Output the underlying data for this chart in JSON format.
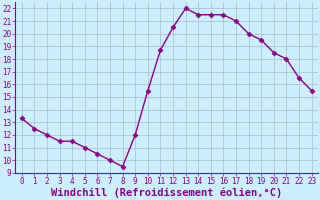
{
  "x": [
    0,
    1,
    2,
    3,
    4,
    5,
    6,
    7,
    8,
    9,
    10,
    11,
    12,
    13,
    14,
    15,
    16,
    17,
    18,
    19,
    20,
    21,
    22,
    23
  ],
  "y": [
    13.3,
    12.5,
    12.0,
    11.5,
    11.5,
    11.0,
    10.5,
    10.0,
    9.5,
    12.0,
    15.5,
    18.7,
    20.5,
    22.0,
    21.5,
    21.5,
    21.5,
    21.0,
    20.0,
    19.5,
    18.5,
    18.0,
    16.5,
    15.5
  ],
  "line_color": "#880088",
  "marker": "D",
  "marker_size": 2.5,
  "xlabel": "Windchill (Refroidissement éolien,°C)",
  "xlabel_fontsize": 7.5,
  "ylim": [
    9,
    22.5
  ],
  "xlim": [
    -0.5,
    23.5
  ],
  "yticks": [
    9,
    10,
    11,
    12,
    13,
    14,
    15,
    16,
    17,
    18,
    19,
    20,
    21,
    22
  ],
  "xticks": [
    0,
    1,
    2,
    3,
    4,
    5,
    6,
    7,
    8,
    9,
    10,
    11,
    12,
    13,
    14,
    15,
    16,
    17,
    18,
    19,
    20,
    21,
    22,
    23
  ],
  "xtick_labels": [
    "0",
    "1",
    "2",
    "3",
    "4",
    "5",
    "6",
    "7",
    "8",
    "9",
    "10",
    "11",
    "12",
    "13",
    "14",
    "15",
    "16",
    "17",
    "18",
    "19",
    "20",
    "21",
    "22",
    "23"
  ],
  "background_color": "#cceeff",
  "grid_color": "#aabbcc",
  "tick_fontsize": 5.5,
  "label_color": "#880088"
}
